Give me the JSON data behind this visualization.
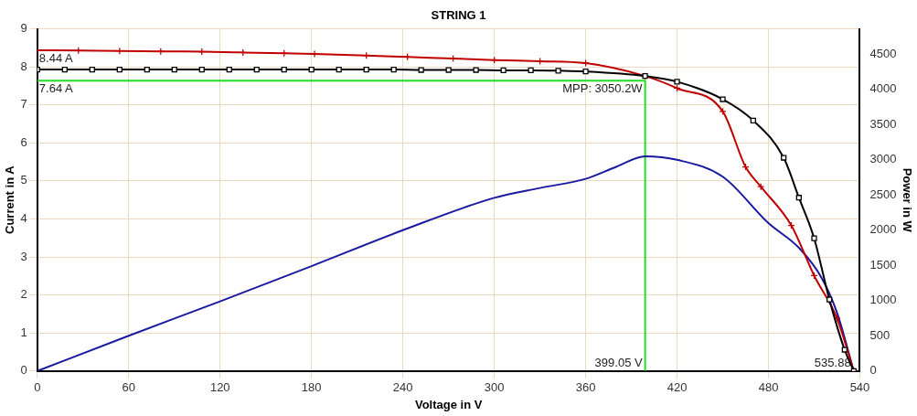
{
  "chart_data": {
    "type": "line",
    "title": "STRING 1",
    "xlabel": "Voltage in V",
    "ylabel": "Current in A",
    "y2label": "Power in W",
    "xlim": [
      0,
      540
    ],
    "xticks": [
      0,
      60,
      120,
      180,
      240,
      300,
      360,
      420,
      480,
      540
    ],
    "ylim": [
      0,
      9
    ],
    "yticks": [
      0,
      1,
      2,
      3,
      4,
      5,
      6,
      7,
      8,
      9
    ],
    "y2lim": [
      0,
      4860
    ],
    "y2ticks": [
      0,
      500,
      1000,
      1500,
      2000,
      2500,
      3000,
      3500,
      4000,
      4500
    ],
    "grid": true,
    "legend": false,
    "series": [
      {
        "color": "#000000",
        "marker": "square",
        "x": [
          0,
          18,
          36,
          54,
          72,
          90,
          108,
          126,
          144,
          162,
          180,
          198,
          216,
          234,
          252,
          270,
          288,
          306,
          324,
          342,
          360,
          399,
          420,
          450,
          470,
          490,
          500,
          510,
          520,
          530,
          536
        ],
        "values": [
          7.93,
          7.93,
          7.93,
          7.93,
          7.93,
          7.93,
          7.93,
          7.93,
          7.93,
          7.93,
          7.93,
          7.93,
          7.93,
          7.93,
          7.92,
          7.92,
          7.92,
          7.91,
          7.91,
          7.9,
          7.88,
          7.76,
          7.61,
          7.15,
          6.59,
          5.61,
          4.56,
          3.49,
          1.88,
          0.56,
          0
        ]
      },
      {
        "color": "#c00000",
        "marker": "cross",
        "x": [
          0,
          27,
          54,
          81,
          108,
          135,
          162,
          182,
          216,
          243,
          273,
          300,
          330,
          360,
          399,
          420,
          450,
          465,
          475,
          495,
          510,
          525,
          536
        ],
        "values": [
          8.44,
          8.43,
          8.42,
          8.41,
          8.4,
          8.38,
          8.36,
          8.34,
          8.3,
          8.26,
          8.22,
          8.18,
          8.15,
          8.1,
          7.76,
          7.44,
          6.83,
          5.37,
          4.85,
          3.83,
          2.51,
          1.39,
          0
        ]
      },
      {
        "color": "#1a1aa0",
        "marker": "none",
        "axis": "y2",
        "x": [
          0,
          60,
          120,
          180,
          240,
          300,
          330,
          360,
          380,
          399.05,
          420,
          450,
          480,
          500,
          515,
          525,
          536
        ],
        "values": [
          0,
          500,
          990,
          1490,
          2000,
          2460,
          2600,
          2730,
          2900,
          3050.2,
          3000,
          2760,
          2100,
          1750,
          1320,
          830,
          0
        ]
      },
      {
        "color": "#22dd22",
        "marker": "none",
        "x": [
          0,
          399.05,
          399.05
        ],
        "values": [
          7.64,
          7.64,
          0
        ]
      }
    ],
    "annotations": [
      {
        "text": "8.44 A",
        "x": 0,
        "y": 8.44
      },
      {
        "text": "7.64 A",
        "x": 0,
        "y": 7.64
      },
      {
        "text": "MPP: 3050.2W",
        "x": 399.05,
        "y": 7.64
      },
      {
        "text": "399.05 V",
        "x": 399.05,
        "y": 0
      },
      {
        "text": "535.88",
        "x": 535.88,
        "y": 0
      }
    ]
  }
}
